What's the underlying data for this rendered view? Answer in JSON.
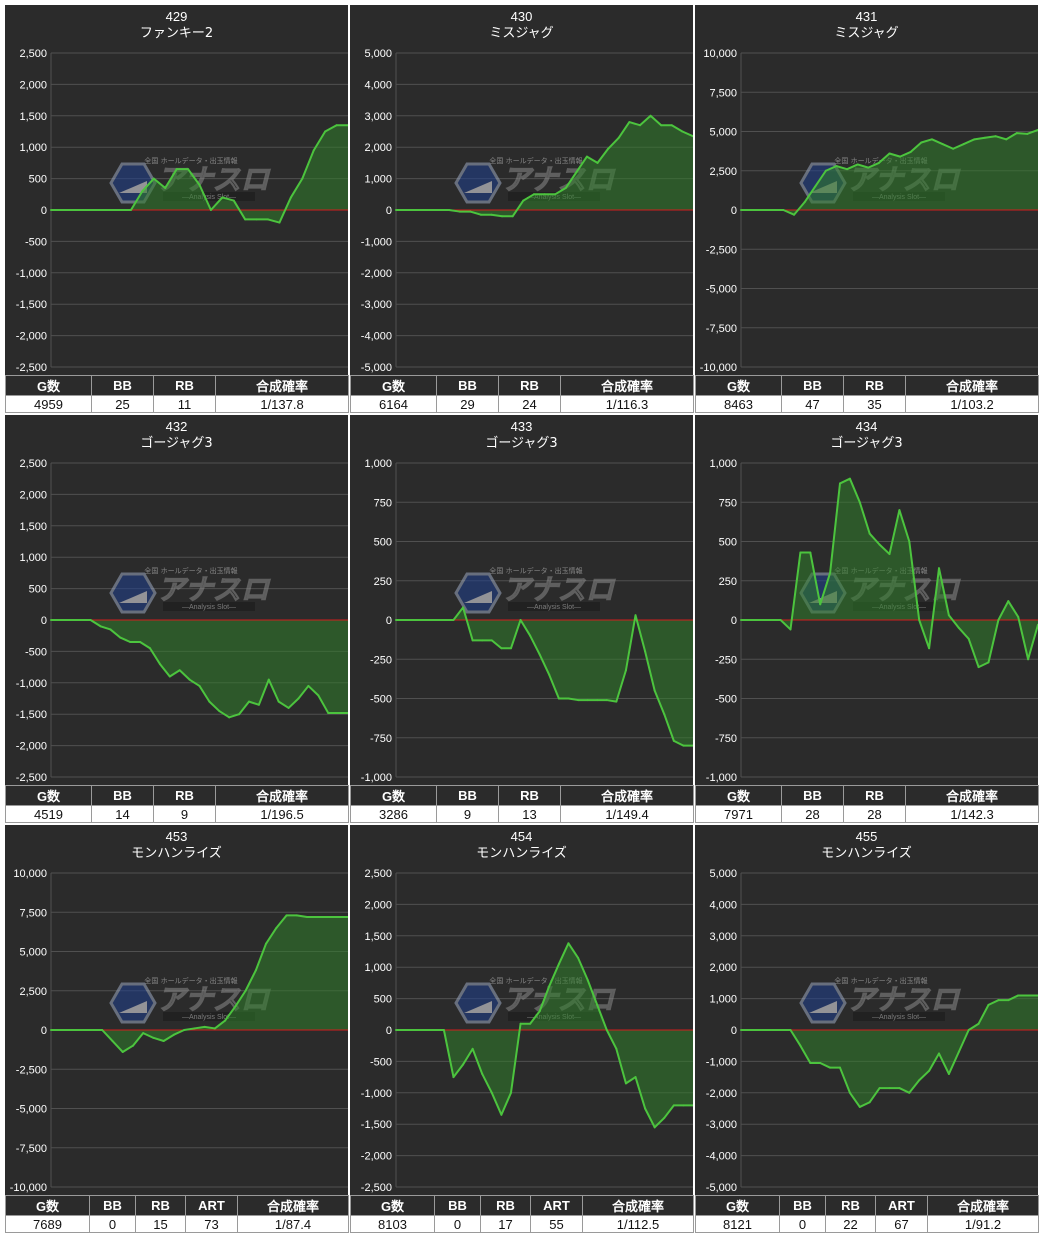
{
  "colors": {
    "panel_bg": "#2b2b2b",
    "grid": "#505050",
    "zero_line": "#d21e1e",
    "series_line": "#4cc43e",
    "series_fill": "#2f7d2a",
    "text": "#ffffff"
  },
  "watermark": {
    "icon": "hexagon-logo-icon",
    "top_text": "全国 ホールデータ・出玉情報",
    "logo_text": "アナスロ",
    "sub_text": "—Analysis Slot—"
  },
  "chart_data": [
    {
      "type": "area",
      "title": "429",
      "subtitle": "ファンキー2",
      "ylim": [
        -2500,
        2500
      ],
      "yticks": [
        "2,500",
        "2,000",
        "1,500",
        "1,000",
        "500",
        "0",
        "-500",
        "-1,000",
        "-1,500",
        "-2,000",
        "-2,500"
      ],
      "ytick_values": [
        2500,
        2000,
        1500,
        1000,
        500,
        0,
        -500,
        -1000,
        -1500,
        -2000,
        -2500
      ],
      "grid": true,
      "values": [
        0,
        0,
        0,
        0,
        0,
        0,
        0,
        0,
        300,
        500,
        350,
        650,
        650,
        400,
        0,
        200,
        150,
        -150,
        -150,
        -150,
        -200,
        200,
        500,
        950,
        1250,
        1350,
        1350
      ],
      "table": {
        "headers": [
          "G数",
          "BB",
          "RB",
          "合成確率"
        ],
        "rows": [
          [
            "4959",
            "25",
            "11",
            "1/137.8"
          ]
        ]
      }
    },
    {
      "type": "area",
      "title": "430",
      "subtitle": "ミスジャグ",
      "ylim": [
        -5000,
        5000
      ],
      "yticks": [
        "5,000",
        "4,000",
        "3,000",
        "2,000",
        "1,000",
        "0",
        "-1,000",
        "-2,000",
        "-3,000",
        "-4,000",
        "-5,000"
      ],
      "ytick_values": [
        5000,
        4000,
        3000,
        2000,
        1000,
        0,
        -1000,
        -2000,
        -3000,
        -4000,
        -5000
      ],
      "grid": true,
      "values": [
        0,
        0,
        0,
        0,
        0,
        0,
        -50,
        -50,
        -150,
        -150,
        -200,
        -200,
        300,
        500,
        500,
        500,
        700,
        1200,
        1700,
        1500,
        1950,
        2300,
        2800,
        2700,
        3000,
        2700,
        2700,
        2500,
        2350
      ],
      "table": {
        "headers": [
          "G数",
          "BB",
          "RB",
          "合成確率"
        ],
        "rows": [
          [
            "6164",
            "29",
            "24",
            "1/116.3"
          ]
        ]
      }
    },
    {
      "type": "area",
      "title": "431",
      "subtitle": "ミスジャグ",
      "ylim": [
        -10000,
        10000
      ],
      "yticks": [
        "10,000",
        "7,500",
        "5,000",
        "2,500",
        "0",
        "-2,500",
        "-5,000",
        "-7,500",
        "-10,000"
      ],
      "ytick_values": [
        10000,
        7500,
        5000,
        2500,
        0,
        -2500,
        -5000,
        -7500,
        -10000
      ],
      "grid": true,
      "values": [
        0,
        0,
        0,
        0,
        0,
        -300,
        500,
        1500,
        2500,
        2800,
        2600,
        2900,
        2700,
        3000,
        3600,
        3400,
        3700,
        4300,
        4500,
        4200,
        3900,
        4200,
        4500,
        4600,
        4700,
        4500,
        4900,
        4850,
        5100
      ],
      "table": {
        "headers": [
          "G数",
          "BB",
          "RB",
          "合成確率"
        ],
        "rows": [
          [
            "8463",
            "47",
            "35",
            "1/103.2"
          ]
        ]
      }
    },
    {
      "type": "area",
      "title": "432",
      "subtitle": "ゴージャグ3",
      "ylim": [
        -2500,
        2500
      ],
      "yticks": [
        "2,500",
        "2,000",
        "1,500",
        "1,000",
        "500",
        "0",
        "-500",
        "-1,000",
        "-1,500",
        "-2,000",
        "-2,500"
      ],
      "ytick_values": [
        2500,
        2000,
        1500,
        1000,
        500,
        0,
        -500,
        -1000,
        -1500,
        -2000,
        -2500
      ],
      "grid": true,
      "values": [
        0,
        0,
        0,
        0,
        0,
        -100,
        -150,
        -280,
        -350,
        -350,
        -450,
        -700,
        -900,
        -800,
        -950,
        -1050,
        -1300,
        -1450,
        -1550,
        -1500,
        -1300,
        -1350,
        -950,
        -1300,
        -1400,
        -1250,
        -1050,
        -1200,
        -1480,
        -1480,
        -1480
      ],
      "table": {
        "headers": [
          "G数",
          "BB",
          "RB",
          "合成確率"
        ],
        "rows": [
          [
            "4519",
            "14",
            "9",
            "1/196.5"
          ]
        ]
      }
    },
    {
      "type": "area",
      "title": "433",
      "subtitle": "ゴージャグ3",
      "ylim": [
        -1000,
        1000
      ],
      "yticks": [
        "1,000",
        "750",
        "500",
        "250",
        "0",
        "-250",
        "-500",
        "-750",
        "-1,000"
      ],
      "ytick_values": [
        1000,
        750,
        500,
        250,
        0,
        -250,
        -500,
        -750,
        -1000
      ],
      "grid": true,
      "values": [
        0,
        0,
        0,
        0,
        0,
        0,
        0,
        80,
        -130,
        -130,
        -130,
        -180,
        -180,
        0,
        -100,
        -220,
        -350,
        -500,
        -500,
        -510,
        -510,
        -510,
        -510,
        -520,
        -320,
        30,
        -200,
        -450,
        -600,
        -770,
        -800,
        -800
      ],
      "table": {
        "headers": [
          "G数",
          "BB",
          "RB",
          "合成確率"
        ],
        "rows": [
          [
            "3286",
            "9",
            "13",
            "1/149.4"
          ]
        ]
      }
    },
    {
      "type": "area",
      "title": "434",
      "subtitle": "ゴージャグ3",
      "ylim": [
        -1000,
        1000
      ],
      "yticks": [
        "1,000",
        "750",
        "500",
        "250",
        "0",
        "-250",
        "-500",
        "-750",
        "-1,000"
      ],
      "ytick_values": [
        1000,
        750,
        500,
        250,
        0,
        -250,
        -500,
        -750,
        -1000
      ],
      "grid": true,
      "values": [
        0,
        0,
        0,
        0,
        0,
        -60,
        430,
        430,
        100,
        300,
        870,
        900,
        750,
        550,
        480,
        420,
        700,
        500,
        0,
        -180,
        330,
        30,
        -50,
        -120,
        -300,
        -270,
        0,
        120,
        20,
        -250,
        -30
      ],
      "table": {
        "headers": [
          "G数",
          "BB",
          "RB",
          "合成確率"
        ],
        "rows": [
          [
            "7971",
            "28",
            "28",
            "1/142.3"
          ]
        ]
      }
    },
    {
      "type": "area",
      "title": "453",
      "subtitle": "モンハンライズ",
      "ylim": [
        -10000,
        10000
      ],
      "yticks": [
        "10,000",
        "7,500",
        "5,000",
        "2,500",
        "0",
        "-2,500",
        "-5,000",
        "-7,500",
        "-10,000"
      ],
      "ytick_values": [
        10000,
        7500,
        5000,
        2500,
        0,
        -2500,
        -5000,
        -7500,
        -10000
      ],
      "grid": true,
      "values": [
        0,
        0,
        0,
        0,
        0,
        0,
        -700,
        -1400,
        -1000,
        -200,
        -500,
        -700,
        -300,
        0,
        100,
        200,
        100,
        600,
        1500,
        2500,
        3800,
        5500,
        6500,
        7300,
        7300,
        7200,
        7200,
        7200,
        7200,
        7200
      ],
      "table": {
        "headers": [
          "G数",
          "BB",
          "RB",
          "ART",
          "合成確率"
        ],
        "rows": [
          [
            "7689",
            "0",
            "15",
            "73",
            "1/87.4"
          ]
        ]
      }
    },
    {
      "type": "area",
      "title": "454",
      "subtitle": "モンハンライズ",
      "ylim": [
        -2500,
        2500
      ],
      "yticks": [
        "2,500",
        "2,000",
        "1,500",
        "1,000",
        "500",
        "0",
        "-500",
        "-1,000",
        "-1,500",
        "-2,000",
        "-2,500"
      ],
      "ytick_values": [
        2500,
        2000,
        1500,
        1000,
        500,
        0,
        -500,
        -1000,
        -1500,
        -2000,
        -2500
      ],
      "grid": true,
      "values": [
        0,
        0,
        0,
        0,
        0,
        0,
        -750,
        -550,
        -300,
        -700,
        -1000,
        -1350,
        -1000,
        100,
        100,
        300,
        700,
        1050,
        1380,
        1150,
        800,
        400,
        0,
        -300,
        -850,
        -750,
        -1250,
        -1550,
        -1400,
        -1200,
        -1200,
        -1200
      ],
      "table": {
        "headers": [
          "G数",
          "BB",
          "RB",
          "ART",
          "合成確率"
        ],
        "rows": [
          [
            "8103",
            "0",
            "17",
            "55",
            "1/112.5"
          ]
        ]
      }
    },
    {
      "type": "area",
      "title": "455",
      "subtitle": "モンハンライズ",
      "ylim": [
        -5000,
        5000
      ],
      "yticks": [
        "5,000",
        "4,000",
        "3,000",
        "2,000",
        "1,000",
        "0",
        "-1,000",
        "-2,000",
        "-3,000",
        "-4,000",
        "-5,000"
      ],
      "ytick_values": [
        5000,
        4000,
        3000,
        2000,
        1000,
        0,
        -1000,
        -2000,
        -3000,
        -4000,
        -5000
      ],
      "grid": true,
      "values": [
        0,
        0,
        0,
        0,
        0,
        0,
        -500,
        -1050,
        -1050,
        -1200,
        -1200,
        -2000,
        -2450,
        -2300,
        -1850,
        -1850,
        -1850,
        -2000,
        -1600,
        -1300,
        -750,
        -1400,
        -700,
        0,
        200,
        800,
        950,
        950,
        1100,
        1100,
        1100
      ],
      "table": {
        "headers": [
          "G数",
          "BB",
          "RB",
          "ART",
          "合成確率"
        ],
        "rows": [
          [
            "8121",
            "0",
            "22",
            "67",
            "1/91.2"
          ]
        ]
      }
    }
  ]
}
